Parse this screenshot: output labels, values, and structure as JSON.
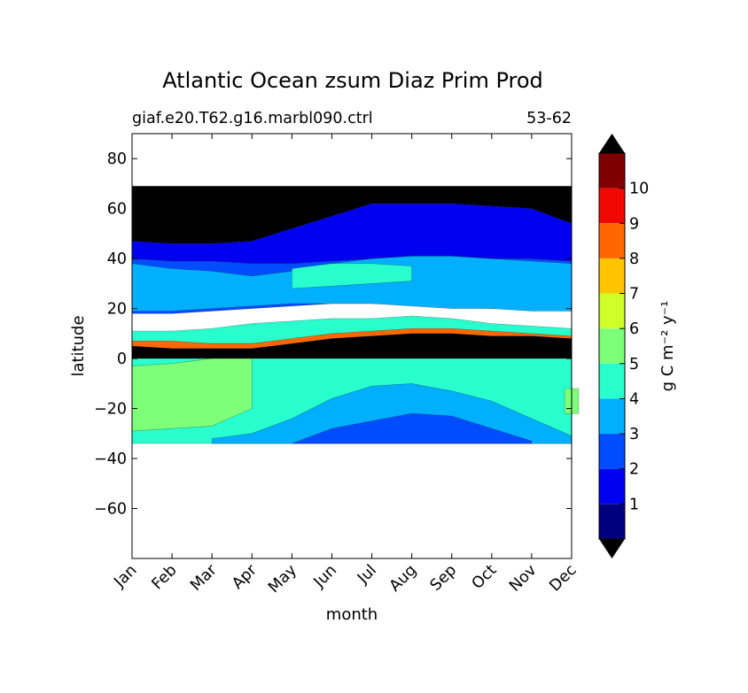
{
  "chart_data": {
    "type": "contour",
    "title": "Atlantic Ocean zsum Diaz Prim Prod",
    "subtitle_left": "giaf.e20.T62.g16.marbl090.ctrl",
    "subtitle_right": "53-62",
    "xlabel": "month",
    "ylabel": "latitude",
    "x_categories": [
      "Jan",
      "Feb",
      "Mar",
      "Apr",
      "May",
      "Jun",
      "Jul",
      "Aug",
      "Sep",
      "Oct",
      "Nov",
      "Dec"
    ],
    "ylim": [
      -80,
      90
    ],
    "yticks": [
      80,
      60,
      40,
      20,
      0,
      -20,
      -40,
      -60
    ],
    "ytick_labels": [
      "80",
      "60",
      "40",
      "20",
      "0",
      "−20",
      "−40",
      "−60"
    ],
    "data_lat_range": [
      -34,
      69
    ],
    "colorbar": {
      "label": "g C m⁻² y⁻¹",
      "levels": [
        0,
        1,
        2,
        3,
        4,
        5,
        6,
        7,
        8,
        9,
        10,
        11
      ],
      "tick_labels": [
        "1",
        "2",
        "3",
        "4",
        "5",
        "6",
        "7",
        "8",
        "9",
        "10"
      ],
      "colors": [
        "#00007f",
        "#0000f1",
        "#004cff",
        "#00b0ff",
        "#29ffce",
        "#7dff7a",
        "#ceff29",
        "#ffc400",
        "#ff6800",
        "#f10800",
        "#7f0000"
      ],
      "over_color": "#000000",
      "under_color": "#000000"
    },
    "regions": [
      {
        "name": "arctic-band",
        "value": "over",
        "lat_top_by_month": [
          69,
          69,
          69,
          69,
          69,
          69,
          69,
          69,
          69,
          69,
          69,
          69
        ],
        "lat_bottom_by_month": [
          47,
          46,
          46,
          47,
          52,
          57,
          62,
          62,
          62,
          61,
          60,
          54
        ]
      },
      {
        "name": "subpolar-north",
        "value": 1,
        "lat_top_by_month": [
          47,
          46,
          46,
          47,
          52,
          57,
          62,
          62,
          62,
          61,
          60,
          54
        ],
        "lat_bottom_by_month": [
          40,
          39,
          39,
          38,
          38,
          39,
          40,
          41,
          41,
          40,
          40,
          39
        ]
      },
      {
        "name": "north-temperate",
        "value": 2,
        "lat_top_by_month": [
          40,
          39,
          39,
          38,
          38,
          39,
          40,
          41,
          41,
          40,
          40,
          39
        ],
        "lat_bottom_by_month": [
          18,
          18,
          19,
          20,
          21,
          22,
          22,
          22,
          21,
          20,
          20,
          19
        ]
      },
      {
        "name": "gyre-north",
        "value": 3,
        "lat_top_by_month": [
          38,
          36,
          35,
          33,
          35,
          38,
          40,
          41,
          41,
          40,
          39,
          38
        ],
        "lat_bottom_by_month": [
          19,
          19,
          20,
          21,
          22,
          22,
          22,
          21,
          20,
          20,
          19,
          19
        ]
      },
      {
        "name": "north-patch",
        "value": 4,
        "lat_top_by_month": [
          null,
          null,
          null,
          null,
          36,
          38,
          38,
          37,
          null,
          null,
          null,
          null
        ],
        "lat_bottom_by_month": [
          null,
          null,
          null,
          null,
          28,
          29,
          30,
          31,
          null,
          null,
          null,
          null
        ]
      },
      {
        "name": "tropical-north",
        "value": 4,
        "lat_top_by_month": [
          11,
          11,
          12,
          14,
          15,
          16,
          16,
          17,
          16,
          14,
          13,
          12
        ],
        "lat_bottom_by_month": [
          6,
          6,
          6,
          6,
          7,
          8,
          9,
          9,
          9,
          8,
          8,
          7
        ]
      },
      {
        "name": "upwelling-high",
        "value": 8,
        "lat_top_by_month": [
          7,
          7,
          6,
          6,
          8,
          10,
          11,
          12,
          12,
          11,
          10,
          9
        ],
        "lat_bottom_by_month": [
          5,
          4,
          4,
          4,
          6,
          8,
          9,
          10,
          10,
          9,
          9,
          8
        ]
      },
      {
        "name": "equatorial",
        "value": "over",
        "lat_top_by_month": [
          5,
          4,
          4,
          4,
          6,
          8,
          9,
          10,
          10,
          9,
          9,
          8
        ],
        "lat_bottom_by_month": [
          0,
          0,
          0,
          0,
          0,
          0,
          0,
          0,
          0,
          0,
          0,
          0
        ]
      },
      {
        "name": "south-tropical",
        "value": 4,
        "lat_top_by_month": [
          0,
          0,
          0,
          0,
          0,
          0,
          0,
          0,
          0,
          0,
          0,
          0
        ],
        "lat_bottom_by_month": [
          -34,
          -34,
          -34,
          -34,
          -34,
          -34,
          -34,
          -34,
          -34,
          -34,
          -34,
          -34
        ]
      },
      {
        "name": "south-green",
        "value": 5,
        "lat_top_by_month": [
          -3,
          -2,
          0,
          0,
          null,
          null,
          null,
          null,
          null,
          null,
          null,
          -12
        ],
        "lat_bottom_by_month": [
          -29,
          -28,
          -27,
          -20,
          null,
          null,
          null,
          null,
          null,
          null,
          null,
          -22
        ]
      },
      {
        "name": "south-gyre",
        "value": 3,
        "lat_top_by_month": [
          null,
          null,
          -32,
          -30,
          -24,
          -16,
          -11,
          -10,
          -13,
          -17,
          -24,
          -31
        ],
        "lat_bottom_by_month": [
          null,
          null,
          -34,
          -34,
          -34,
          -34,
          -34,
          -34,
          -34,
          -34,
          -34,
          -34
        ]
      },
      {
        "name": "south-core",
        "value": 2,
        "lat_top_by_month": [
          null,
          null,
          null,
          null,
          -34,
          -28,
          -25,
          -22,
          -23,
          -28,
          -33,
          null
        ],
        "lat_bottom_by_month": [
          null,
          null,
          null,
          null,
          -34,
          -34,
          -34,
          -34,
          -34,
          -34,
          -34,
          null
        ]
      }
    ]
  }
}
